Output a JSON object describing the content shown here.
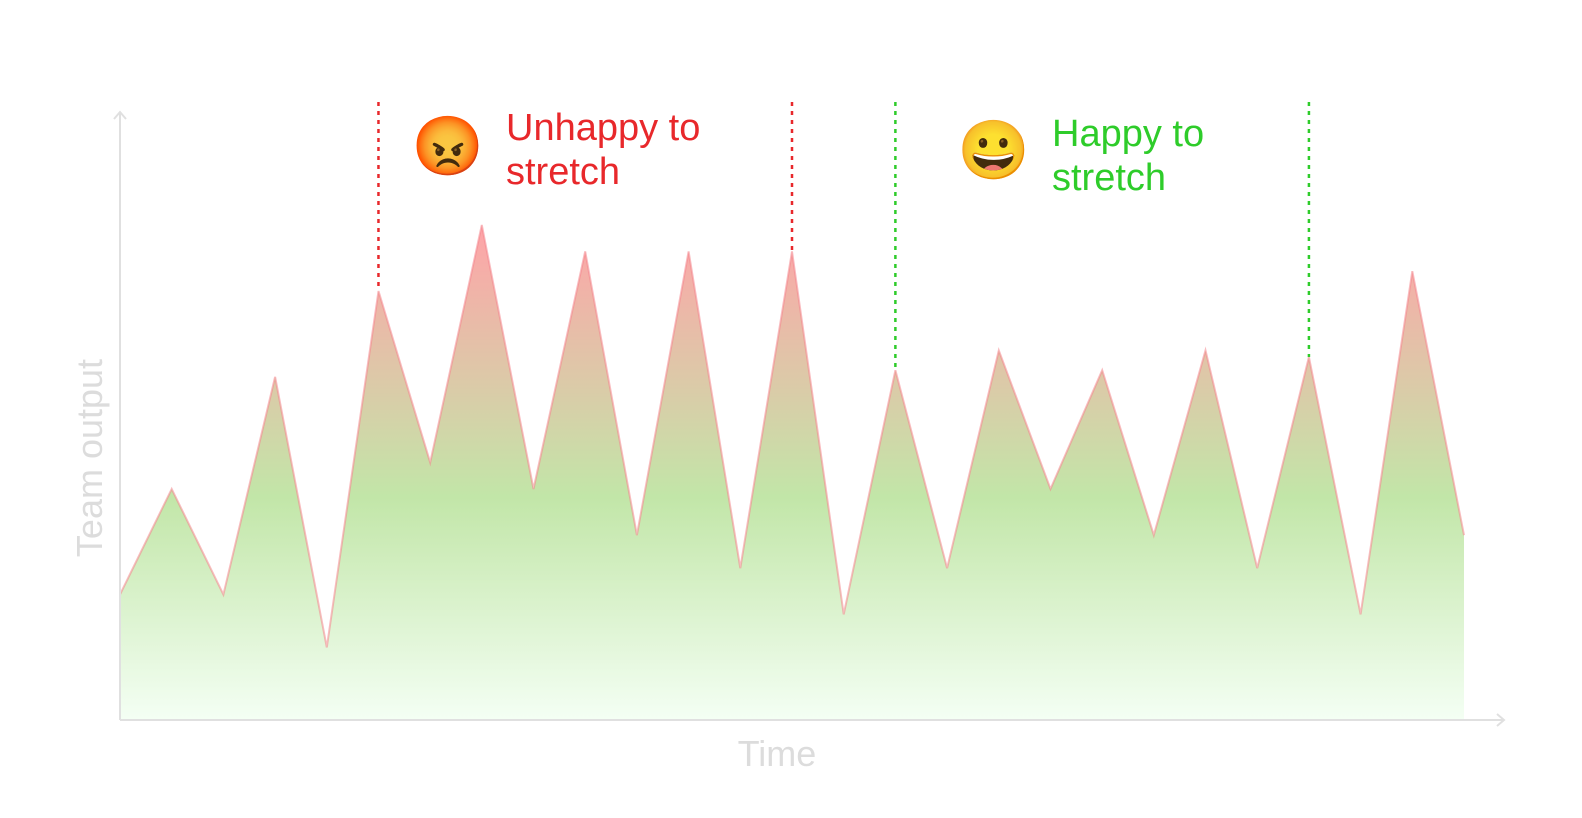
{
  "chart_data": {
    "type": "area",
    "title": "",
    "xlabel": "Time",
    "ylabel": "Team output",
    "x": [
      0,
      1,
      2,
      3,
      4,
      5,
      6,
      7,
      8,
      9,
      10,
      11,
      12,
      13,
      14,
      15,
      16,
      17,
      18,
      19,
      20,
      21,
      22,
      23,
      24,
      25,
      26
    ],
    "values": [
      19,
      35,
      19,
      52,
      11,
      65,
      39,
      75,
      35,
      71,
      28,
      71,
      23,
      71,
      16,
      53,
      23,
      56,
      35,
      53,
      28,
      56,
      23,
      55,
      16,
      68,
      28
    ],
    "xlim": [
      0,
      26
    ],
    "ylim": [
      0,
      100
    ],
    "grid": false,
    "colors": {
      "low": "#c9f5c9",
      "high": "#ffa3a8",
      "line": "#f4858d",
      "unhappy": "#e8282b",
      "happy": "#2ecc2a",
      "axis": "#e0e0e0"
    },
    "annotations": [
      {
        "kind": "region",
        "label_line1": "Unhappy to",
        "label_line2": "stretch",
        "emoji": "😡",
        "emoji_name": "angry-face-icon",
        "x_start": 5,
        "x_end": 13,
        "color": "#e8282b"
      },
      {
        "kind": "region",
        "label_line1": "Happy to",
        "label_line2": "stretch",
        "emoji": "😀",
        "emoji_name": "grinning-face-icon",
        "x_start": 15,
        "x_end": 23,
        "color": "#2ecc2a"
      }
    ]
  }
}
